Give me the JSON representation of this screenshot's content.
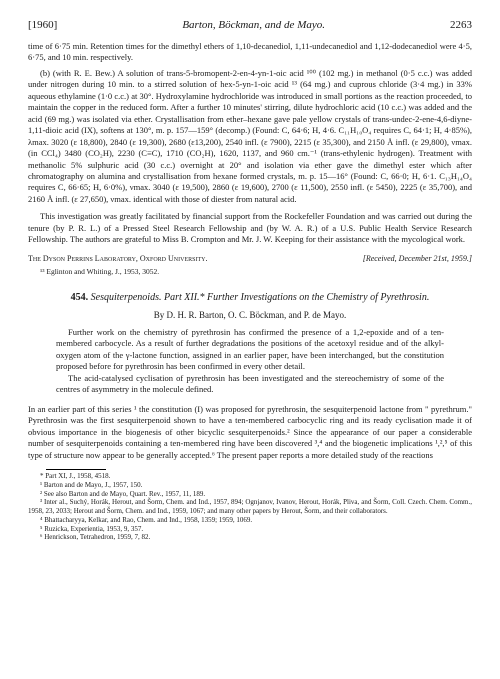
{
  "header": {
    "year": "[1960]",
    "authors": "Barton, Böckman, and de Mayo.",
    "page": "2263"
  },
  "topSection": {
    "p1": "time of 6·75 min. Retention times for the dimethyl ethers of 1,10-decanediol, 1,11-undecanediol and 1,12-dodecanediol were 4·5, 6·75, and 10 min. respectively.",
    "p2": "(b) (with R. E. Bew.) A solution of trans-5-bromopent-2-en-4-yn-1-oic acid ¹⁰⁰ (102 mg.) in methanol (0·5 c.c.) was added under nitrogen during 10 min. to a stirred solution of hex-5-yn-1-oic acid ¹³ (64 mg.) and cuprous chloride (3·4 mg.) in 33% aqueous ethylamine (1·0 c.c.) at 30°. Hydroxylamine hydrochloride was introduced in small portions as the reaction proceeded, to maintain the copper in the reduced form. After a further 10 minutes' stirring, dilute hydrochloric acid (10 c.c.) was added and the acid (69 mg.) was isolated via ether. Crystallisation from ether–hexane gave pale yellow crystals of trans-undec-2-ene-4,6-diyne-1,11-dioic acid (IX), softens at 130°, m. p. 157—159° (decomp.) (Found: C, 64·6; H, 4·6. C₁₁H₁₀O₄ requires C, 64·1; H, 4·85%), λmax. 3020 (ε 18,800), 2840 (ε 19,300), 2680 (ε13,200), 2540 infl. (ε 7900), 2215 (ε 35,300), and 2150 Å infl. (ε 29,800), νmax. (in CCl₄) 3480 (CO₂H), 2230 (C≡C), 1710 (CO₂H), 1620, 1137, and 960 cm.⁻¹ (trans-ethylenic hydrogen). Treatment with methanolic 5% sulphuric acid (30 c.c.) overnight at 20° and isolation via ether gave the dimethyl ester which after chromatography on alumina and crystallisation from hexane formed crystals, m. p. 15—16° (Found: C, 66·0; H, 6·1. C₁₃H₁₄O₄ requires C, 66·65; H, 6·0%), νmax. 3040 (ε 19,500), 2860 (ε 19,600), 2700 (ε 11,500), 2550 infl. (ε 5450), 2225 (ε 35,700), and 2160 Å infl. (ε 27,650), νmax. identical with those of diester from natural acid.",
    "ack": "This investigation was greatly facilitated by financial support from the Rockefeller Foundation and was carried out during the tenure (by P. R. L.) of a Pressed Steel Research Fellowship and (by W. A. R.) of a U.S. Public Health Service Research Fellowship. The authors are grateful to Miss B. Crompton and Mr. J. W. Keeping for their assistance with the mycological work.",
    "affil": "The Dyson Perrins Laboratory, Oxford University.",
    "received": "[Received, December 21st, 1959.]",
    "ref13": "¹³ Eglinton and Whiting, J., 1953, 3052."
  },
  "article": {
    "number": "454.",
    "title": "Sesquiterpenoids. Part XII.* Further Investigations on the Chemistry of Pyrethrosin.",
    "byline": "By D. H. R. Barton, O. C. Böckman, and P. de Mayo.",
    "abstract1": "Further work on the chemistry of pyrethrosin has confirmed the presence of a 1,2-epoxide and of a ten-membered carbocycle. As a result of further degradations the positions of the acetoxyl residue and of the alkyl-oxygen atom of the γ-lactone function, assigned in an earlier paper, have been interchanged, but the constitution proposed before for pyrethrosin has been confirmed in every other detail.",
    "abstract2": "The acid-catalysed cyclisation of pyrethrosin has been investigated and the stereochemistry of some of the centres of asymmetry in the molecule defined.",
    "body": "In an earlier part of this series ¹ the constitution (I) was proposed for pyrethrosin, the sesquiterpenoid lactone from \" pyrethrum.\" Pyrethrosin was the first sesquiterpenoid shown to have a ten-membered carbocyclic ring and its ready cyclisation made it of obvious importance in the biogenesis of other bicyclic sesquiterpenoids.² Since the appearance of our paper a considerable number of sesquiterpenoids containing a ten-membered ring have been discovered ³,⁴ and the biogenetic implications ¹,²,⁵ of this type of structure now appear to be generally accepted.⁶ The present paper reports a more detailed study of the reactions"
  },
  "footnotes": {
    "star": "* Part XI, J., 1958, 4518.",
    "f1": "¹ Barton and de Mayo, J., 1957, 150.",
    "f2": "² See also Barton and de Mayo, Quart. Rev., 1957, 11, 189.",
    "f3": "³ Inter al., Suchý, Horák, Herout, and Šorm, Chem. and Ind., 1957, 894; Ognjanov, Ivanov, Herout, Horák, Pliva, and Šorm, Coll. Czech. Chem. Comm., 1958, 23, 2033; Herout and Šorm, Chem. and Ind., 1959, 1067; and many other papers by Herout, Šorm, and their collaborators.",
    "f4": "⁴ Bhattacharyya, Kelkar, and Rao, Chem. and Ind., 1958, 1359; 1959, 1069.",
    "f5": "⁵ Ruzicka, Experientia, 1953, 9, 357.",
    "f6": "⁶ Henrickson, Tetrahedron, 1959, 7, 82."
  }
}
